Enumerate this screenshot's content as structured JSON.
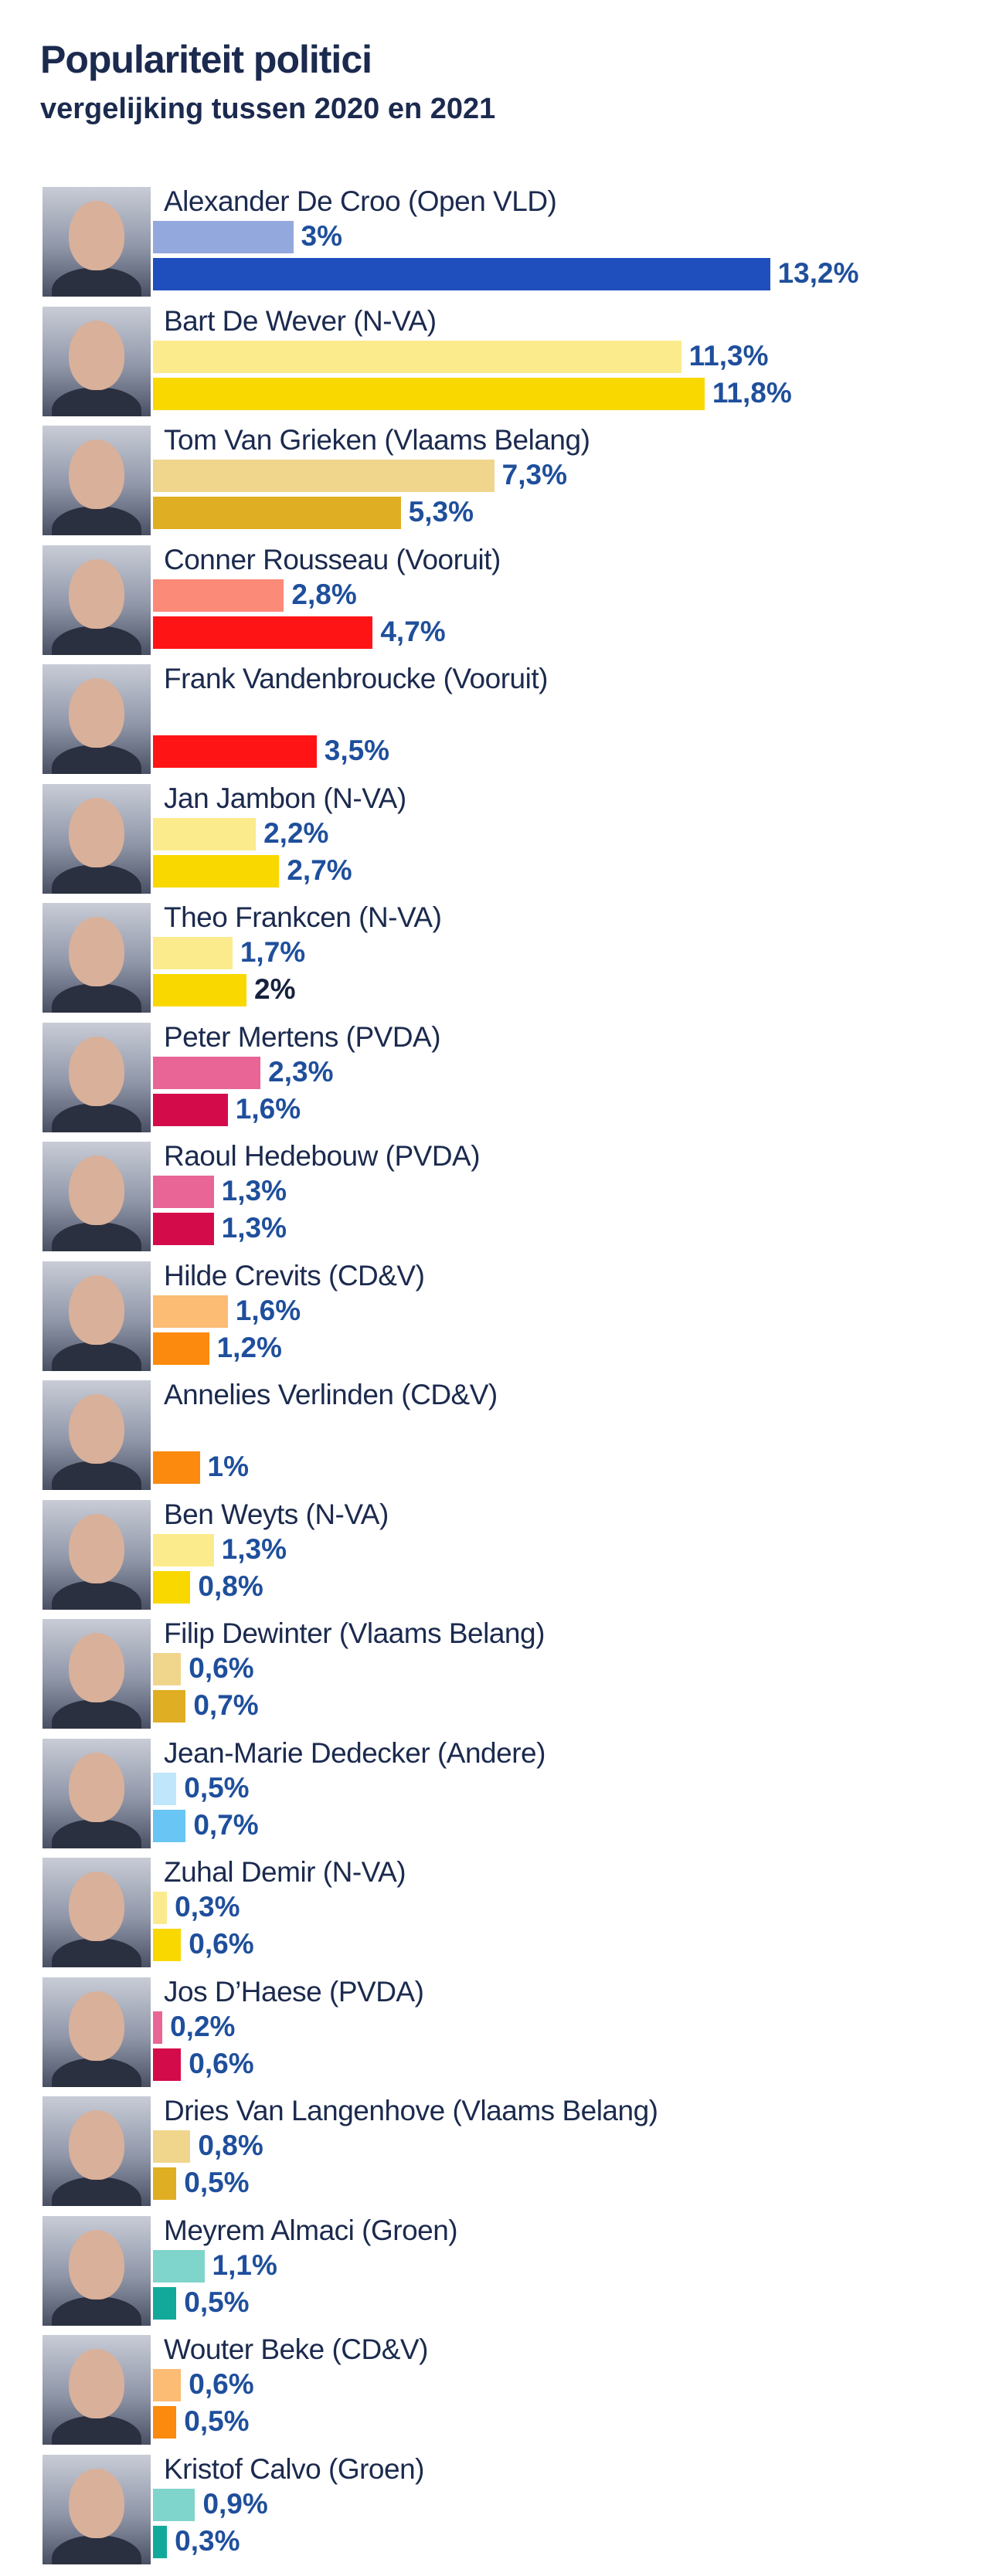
{
  "chart_data": {
    "type": "bar",
    "orientation": "horizontal",
    "title": "Populariteit politici",
    "subtitle": "vergelijking tussen 2020 en 2021",
    "series_years": [
      "2020",
      "2021"
    ],
    "politicians": [
      {
        "name": "Alexander De Croo (Open VLD)",
        "v2020": 3.0,
        "v2021": 13.2,
        "label2020": "3%",
        "label2021": "13,2%",
        "color2020": "#93a8dc",
        "color2021": "#1e4fbd"
      },
      {
        "name": "Bart De Wever (N-VA)",
        "v2020": 11.3,
        "v2021": 11.8,
        "label2020": "11,3%",
        "label2021": "11,8%",
        "color2020": "#fbeb8c",
        "color2021": "#f9d800"
      },
      {
        "name": "Tom Van Grieken (Vlaams Belang)",
        "v2020": 7.3,
        "v2021": 5.3,
        "label2020": "7,3%",
        "label2021": "5,3%",
        "color2020": "#f0d58c",
        "color2021": "#e0ae22"
      },
      {
        "name": "Conner Rousseau (Vooruit)",
        "v2020": 2.8,
        "v2021": 4.7,
        "label2020": "2,8%",
        "label2021": "4,7%",
        "color2020": "#fb8a78",
        "color2021": "#ff1416"
      },
      {
        "name": "Frank Vandenbroucke (Vooruit)",
        "v2020": null,
        "v2021": 3.5,
        "label2020": "",
        "label2021": "3,5%",
        "color2020": "#fb8a78",
        "color2021": "#ff1416"
      },
      {
        "name": "Jan Jambon (N-VA)",
        "v2020": 2.2,
        "v2021": 2.7,
        "label2020": "2,2%",
        "label2021": "2,7%",
        "color2020": "#fbeb8c",
        "color2021": "#f9d800"
      },
      {
        "name": "Theo Frankcen (N-VA)",
        "v2020": 1.7,
        "v2021": 2.0,
        "label2020": "1,7%",
        "label2021": "2%",
        "color2020": "#fbeb8c",
        "color2021": "#f9d800"
      },
      {
        "name": "Peter Mertens (PVDA)",
        "v2020": 2.3,
        "v2021": 1.6,
        "label2020": "2,3%",
        "label2021": "1,6%",
        "color2020": "#e86596",
        "color2021": "#d40b4b"
      },
      {
        "name": "Raoul Hedebouw (PVDA)",
        "v2020": 1.3,
        "v2021": 1.3,
        "label2020": "1,3%",
        "label2021": "1,3%",
        "color2020": "#e86596",
        "color2021": "#d40b4b"
      },
      {
        "name": "Hilde Crevits (CD&V)",
        "v2020": 1.6,
        "v2021": 1.2,
        "label2020": "1,6%",
        "label2021": "1,2%",
        "color2020": "#fcbc74",
        "color2021": "#fb8a0e"
      },
      {
        "name": "Annelies Verlinden (CD&V)",
        "v2020": null,
        "v2021": 1.0,
        "label2020": "",
        "label2021": "1%",
        "color2020": "#fcbc74",
        "color2021": "#fb8a0e"
      },
      {
        "name": "Ben Weyts (N-VA)",
        "v2020": 1.3,
        "v2021": 0.8,
        "label2020": "1,3%",
        "label2021": "0,8%",
        "color2020": "#fbeb8c",
        "color2021": "#f9d800"
      },
      {
        "name": "Filip Dewinter (Vlaams Belang)",
        "v2020": 0.6,
        "v2021": 0.7,
        "label2020": "0,6%",
        "label2021": "0,7%",
        "color2020": "#f0d58c",
        "color2021": "#e0ae22"
      },
      {
        "name": "Jean-Marie Dedecker (Andere)",
        "v2020": 0.5,
        "v2021": 0.7,
        "label2020": "0,5%",
        "label2021": "0,7%",
        "color2020": "#bfe6fb",
        "color2021": "#69c6f4"
      },
      {
        "name": "Zuhal Demir (N-VA)",
        "v2020": 0.3,
        "v2021": 0.6,
        "label2020": "0,3%",
        "label2021": "0,6%",
        "color2020": "#fbeb8c",
        "color2021": "#f9d800"
      },
      {
        "name": "Jos D’Haese (PVDA)",
        "v2020": 0.2,
        "v2021": 0.6,
        "label2020": "0,2%",
        "label2021": "0,6%",
        "color2020": "#e86596",
        "color2021": "#d40b4b"
      },
      {
        "name": "Dries Van Langenhove (Vlaams Belang)",
        "v2020": 0.8,
        "v2021": 0.5,
        "label2020": "0,8%",
        "label2021": "0,5%",
        "color2020": "#f0d58c",
        "color2021": "#e0ae22"
      },
      {
        "name": "Meyrem Almaci (Groen)",
        "v2020": 1.1,
        "v2021": 0.5,
        "label2020": "1,1%",
        "label2021": "0,5%",
        "color2020": "#7fd4cb",
        "color2021": "#12a99b"
      },
      {
        "name": "Wouter Beke (CD&V)",
        "v2020": 0.6,
        "v2021": 0.5,
        "label2020": "0,6%",
        "label2021": "0,5%",
        "color2020": "#fcbc74",
        "color2021": "#fb8a0e"
      },
      {
        "name": "Kristof Calvo (Groen)",
        "v2020": 0.9,
        "v2021": 0.3,
        "label2020": "0,9%",
        "label2021": "0,3%",
        "color2020": "#7fd4cb",
        "color2021": "#12a99b"
      }
    ]
  }
}
